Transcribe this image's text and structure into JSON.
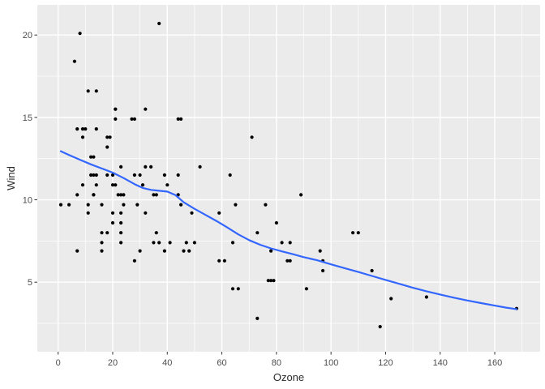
{
  "figure": {
    "background": "#FFFFFF",
    "panel_background": "#EBEBEB",
    "grid_color": "#FFFFFF",
    "point_color": "#000000",
    "smooth_line_color": "#3366FF",
    "axis_text_color": "#4D4D4D",
    "axis_title_color": "#2B2B2B",
    "tick_mark_color": "#333333"
  },
  "chart_data": {
    "type": "scatter",
    "title": "",
    "xlabel": "Ozone",
    "ylabel": "Wind",
    "xlim": [
      -7.63,
      176.63
    ],
    "ylim": [
      0.78,
      21.83
    ],
    "x_major_ticks": [
      0,
      20,
      40,
      60,
      80,
      100,
      120,
      140,
      160
    ],
    "x_minor_ticks": [
      10,
      30,
      50,
      70,
      90,
      110,
      130,
      150,
      170
    ],
    "y_major_ticks": [
      5,
      10,
      15,
      20
    ],
    "y_minor_ticks": [
      2.5,
      7.5,
      12.5,
      17.5
    ],
    "grid": "major and minor white gridlines on gray panel",
    "legend": "none",
    "series": [
      {
        "name": "observations",
        "type": "scatter",
        "points": [
          [
            41,
            7.4
          ],
          [
            36,
            8
          ],
          [
            12,
            12.6
          ],
          [
            18,
            11.5
          ],
          [
            28,
            14.9
          ],
          [
            23,
            8.6
          ],
          [
            19,
            13.8
          ],
          [
            8,
            20.1
          ],
          [
            7,
            6.9
          ],
          [
            16,
            9.7
          ],
          [
            11,
            9.2
          ],
          [
            14,
            10.9
          ],
          [
            18,
            13.2
          ],
          [
            14,
            11.5
          ],
          [
            34,
            12
          ],
          [
            6,
            18.4
          ],
          [
            30,
            11.5
          ],
          [
            11,
            9.7
          ],
          [
            1,
            9.7
          ],
          [
            11,
            16.6
          ],
          [
            4,
            9.7
          ],
          [
            32,
            12
          ],
          [
            23,
            12
          ],
          [
            45,
            14.9
          ],
          [
            115,
            5.7
          ],
          [
            37,
            7.4
          ],
          [
            29,
            9.7
          ],
          [
            71,
            13.8
          ],
          [
            39,
            11.5
          ],
          [
            23,
            8
          ],
          [
            21,
            14.9
          ],
          [
            37,
            20.7
          ],
          [
            20,
            9.2
          ],
          [
            12,
            11.5
          ],
          [
            13,
            10.3
          ],
          [
            135,
            4.1
          ],
          [
            49,
            9.2
          ],
          [
            32,
            9.2
          ],
          [
            64,
            4.6
          ],
          [
            40,
            10.9
          ],
          [
            77,
            5.1
          ],
          [
            97,
            6.3
          ],
          [
            97,
            5.7
          ],
          [
            85,
            7.4
          ],
          [
            10,
            14.3
          ],
          [
            27,
            14.9
          ],
          [
            7,
            14.3
          ],
          [
            48,
            6.9
          ],
          [
            35,
            10.3
          ],
          [
            61,
            6.3
          ],
          [
            79,
            5.1
          ],
          [
            63,
            11.5
          ],
          [
            16,
            6.9
          ],
          [
            80,
            8.6
          ],
          [
            108,
            8
          ],
          [
            20,
            8.6
          ],
          [
            52,
            12
          ],
          [
            82,
            7.4
          ],
          [
            50,
            7.4
          ],
          [
            64,
            7.4
          ],
          [
            59,
            9.2
          ],
          [
            39,
            6.9
          ],
          [
            9,
            13.8
          ],
          [
            16,
            7.4
          ],
          [
            78,
            6.9
          ],
          [
            35,
            7.4
          ],
          [
            66,
            4.6
          ],
          [
            122,
            4
          ],
          [
            89,
            10.3
          ],
          [
            110,
            8
          ],
          [
            44,
            11.5
          ],
          [
            28,
            11.5
          ],
          [
            65,
            9.7
          ],
          [
            22,
            10.3
          ],
          [
            59,
            6.3
          ],
          [
            23,
            7.4
          ],
          [
            31,
            10.9
          ],
          [
            44,
            10.3
          ],
          [
            21,
            15.5
          ],
          [
            9,
            14.3
          ],
          [
            45,
            9.7
          ],
          [
            168,
            3.4
          ],
          [
            73,
            8
          ],
          [
            76,
            9.7
          ],
          [
            118,
            2.3
          ],
          [
            84,
            6.3
          ],
          [
            85,
            6.3
          ],
          [
            96,
            6.9
          ],
          [
            78,
            5.1
          ],
          [
            73,
            2.8
          ],
          [
            91,
            4.6
          ],
          [
            47,
            7.4
          ],
          [
            32,
            15.5
          ],
          [
            20,
            10.9
          ],
          [
            23,
            10.3
          ],
          [
            21,
            10.9
          ],
          [
            24,
            9.7
          ],
          [
            44,
            14.9
          ],
          [
            21,
            15.5
          ],
          [
            28,
            6.3
          ],
          [
            9,
            10.9
          ],
          [
            13,
            11.5
          ],
          [
            46,
            6.9
          ],
          [
            18,
            13.8
          ],
          [
            13,
            10.3
          ],
          [
            24,
            10.3
          ],
          [
            16,
            8
          ],
          [
            13,
            12.6
          ],
          [
            23,
            9.2
          ],
          [
            36,
            10.3
          ],
          [
            7,
            10.3
          ],
          [
            14,
            16.6
          ],
          [
            30,
            6.9
          ],
          [
            14,
            14.3
          ],
          [
            18,
            8
          ],
          [
            20,
            11.5
          ]
        ]
      },
      {
        "name": "loess-smooth",
        "type": "line",
        "x": [
          1,
          4,
          8,
          12,
          16,
          20,
          24,
          28,
          31,
          34,
          37,
          40,
          43,
          46,
          50,
          54,
          58,
          62,
          66,
          70,
          74,
          78,
          82,
          86,
          90,
          95,
          100,
          105,
          110,
          115,
          120,
          125,
          130,
          135,
          140,
          145,
          150,
          155,
          160,
          164,
          168
        ],
        "y": [
          12.95,
          12.72,
          12.43,
          12.15,
          11.9,
          11.65,
          11.32,
          10.95,
          10.72,
          10.6,
          10.55,
          10.5,
          10.28,
          9.85,
          9.45,
          9.08,
          8.72,
          8.32,
          7.9,
          7.55,
          7.27,
          7.05,
          6.87,
          6.7,
          6.52,
          6.33,
          6.08,
          5.85,
          5.62,
          5.38,
          5.14,
          4.9,
          4.66,
          4.45,
          4.25,
          4.06,
          3.89,
          3.73,
          3.58,
          3.46,
          3.36
        ]
      }
    ]
  }
}
